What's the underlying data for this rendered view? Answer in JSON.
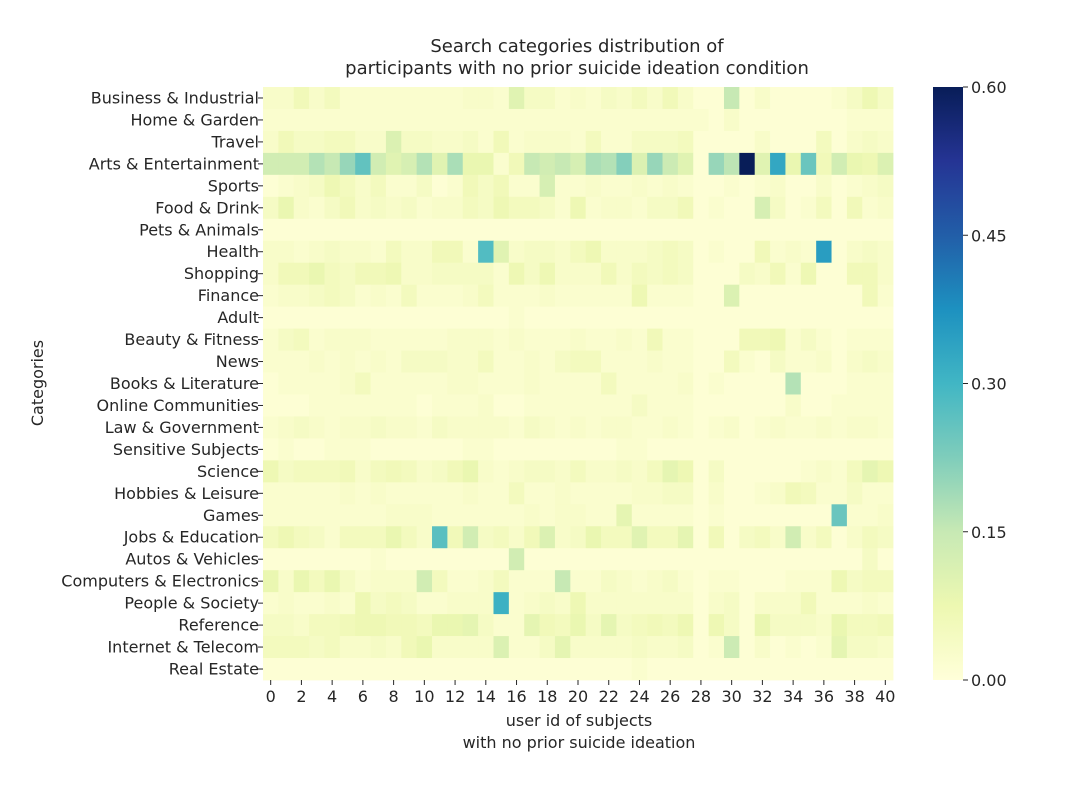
{
  "chart_data": {
    "type": "heatmap",
    "title_lines": [
      "Search categories distribution of",
      "participants with no prior suicide ideation condition"
    ],
    "xlabel_lines": [
      "user id of subjects",
      "with no prior suicide ideation"
    ],
    "ylabel": "Categories",
    "colormap": "YlGnBu",
    "colorbar": {
      "vmin": 0.0,
      "vmax": 0.6,
      "ticks": [
        "0.00",
        "0.15",
        "0.30",
        "0.45",
        "0.60"
      ]
    },
    "x_ticks": [
      "0",
      "2",
      "4",
      "6",
      "8",
      "10",
      "12",
      "14",
      "16",
      "18",
      "20",
      "22",
      "24",
      "26",
      "28",
      "30",
      "32",
      "34",
      "36",
      "38",
      "40"
    ],
    "x": [
      0,
      1,
      2,
      3,
      4,
      5,
      6,
      7,
      8,
      9,
      10,
      11,
      12,
      13,
      14,
      15,
      16,
      17,
      18,
      19,
      20,
      21,
      22,
      23,
      24,
      25,
      26,
      27,
      28,
      29,
      30,
      31,
      32,
      33,
      34,
      35,
      36,
      37,
      38,
      39,
      40
    ],
    "categories": [
      "Business & Industrial",
      "Home & Garden",
      "Travel",
      "Arts & Entertainment",
      "Sports",
      "Food & Drink",
      "Pets & Animals",
      "Health",
      "Shopping",
      "Finance",
      "Adult",
      "Beauty & Fitness",
      "News",
      "Books & Literature",
      "Online Communities",
      "Law & Government",
      "Sensitive Subjects",
      "Science",
      "Hobbies & Leisure",
      "Games",
      "Jobs & Education",
      "Autos & Vehicles",
      "Computers & Electronics",
      "People & Society",
      "Reference",
      "Internet & Telecom",
      "Real Estate"
    ],
    "values": [
      [
        0.03,
        0.03,
        0.06,
        0.03,
        0.05,
        0.02,
        0.02,
        0.02,
        0.02,
        0.02,
        0.02,
        0.02,
        0.02,
        0.03,
        0.03,
        0.02,
        0.1,
        0.04,
        0.04,
        0.02,
        0.03,
        0.02,
        0.04,
        0.03,
        0.05,
        0.03,
        0.06,
        0.03,
        0.01,
        0.01,
        0.15,
        0.01,
        0.03,
        0.01,
        0.01,
        0.01,
        0.01,
        0.02,
        0.04,
        0.07,
        0.04
      ],
      [
        0.02,
        0.02,
        0.02,
        0.02,
        0.02,
        0.02,
        0.02,
        0.02,
        0.02,
        0.02,
        0.02,
        0.02,
        0.02,
        0.02,
        0.02,
        0.02,
        0.02,
        0.02,
        0.02,
        0.02,
        0.02,
        0.02,
        0.02,
        0.02,
        0.02,
        0.02,
        0.02,
        0.02,
        0.02,
        0.01,
        0.03,
        0.01,
        0.01,
        0.01,
        0.01,
        0.01,
        0.01,
        0.01,
        0.02,
        0.02,
        0.02
      ],
      [
        0.03,
        0.06,
        0.04,
        0.04,
        0.05,
        0.05,
        0.03,
        0.03,
        0.11,
        0.04,
        0.04,
        0.03,
        0.03,
        0.04,
        0.02,
        0.06,
        0.02,
        0.03,
        0.03,
        0.03,
        0.02,
        0.05,
        0.02,
        0.02,
        0.04,
        0.04,
        0.04,
        0.05,
        0.01,
        0.01,
        0.01,
        0.01,
        0.03,
        0.01,
        0.01,
        0.01,
        0.05,
        0.01,
        0.03,
        0.04,
        0.03
      ],
      [
        0.13,
        0.13,
        0.13,
        0.17,
        0.15,
        0.2,
        0.26,
        0.13,
        0.1,
        0.12,
        0.17,
        0.1,
        0.18,
        0.08,
        0.08,
        0.02,
        0.06,
        0.15,
        0.13,
        0.15,
        0.12,
        0.18,
        0.17,
        0.22,
        0.11,
        0.2,
        0.14,
        0.1,
        0.01,
        0.2,
        0.16,
        0.6,
        0.1,
        0.33,
        0.08,
        0.25,
        0.06,
        0.13,
        0.08,
        0.07,
        0.11
      ],
      [
        0.01,
        0.02,
        0.03,
        0.04,
        0.07,
        0.05,
        0.03,
        0.05,
        0.02,
        0.02,
        0.04,
        0.01,
        0.02,
        0.06,
        0.04,
        0.06,
        0.02,
        0.02,
        0.12,
        0.02,
        0.02,
        0.03,
        0.02,
        0.02,
        0.03,
        0.02,
        0.03,
        0.02,
        0.01,
        0.01,
        0.02,
        0.01,
        0.02,
        0.03,
        0.01,
        0.01,
        0.03,
        0.01,
        0.02,
        0.03,
        0.04
      ],
      [
        0.04,
        0.08,
        0.03,
        0.02,
        0.04,
        0.06,
        0.03,
        0.04,
        0.03,
        0.04,
        0.02,
        0.03,
        0.03,
        0.05,
        0.04,
        0.07,
        0.05,
        0.05,
        0.04,
        0.02,
        0.07,
        0.02,
        0.03,
        0.03,
        0.02,
        0.04,
        0.04,
        0.06,
        0.01,
        0.02,
        0.01,
        0.01,
        0.12,
        0.04,
        0.01,
        0.02,
        0.05,
        0.01,
        0.06,
        0.02,
        0.03
      ],
      [
        0.01,
        0.01,
        0.01,
        0.01,
        0.01,
        0.01,
        0.01,
        0.01,
        0.01,
        0.01,
        0.01,
        0.01,
        0.01,
        0.01,
        0.01,
        0.01,
        0.01,
        0.01,
        0.01,
        0.01,
        0.01,
        0.01,
        0.01,
        0.01,
        0.01,
        0.01,
        0.01,
        0.01,
        0.01,
        0.01,
        0.01,
        0.01,
        0.01,
        0.01,
        0.01,
        0.01,
        0.01,
        0.01,
        0.01,
        0.01,
        0.01
      ],
      [
        0.03,
        0.03,
        0.02,
        0.03,
        0.04,
        0.03,
        0.03,
        0.02,
        0.05,
        0.03,
        0.03,
        0.06,
        0.06,
        0.02,
        0.28,
        0.1,
        0.03,
        0.04,
        0.04,
        0.03,
        0.05,
        0.07,
        0.03,
        0.03,
        0.03,
        0.04,
        0.05,
        0.04,
        0.01,
        0.02,
        0.01,
        0.01,
        0.06,
        0.02,
        0.03,
        0.02,
        0.35,
        0.01,
        0.03,
        0.04,
        0.03
      ],
      [
        0.03,
        0.06,
        0.06,
        0.08,
        0.05,
        0.04,
        0.06,
        0.06,
        0.07,
        0.03,
        0.03,
        0.04,
        0.04,
        0.04,
        0.04,
        0.02,
        0.07,
        0.04,
        0.07,
        0.03,
        0.03,
        0.03,
        0.06,
        0.03,
        0.05,
        0.04,
        0.05,
        0.04,
        0.01,
        0.01,
        0.01,
        0.04,
        0.03,
        0.06,
        0.02,
        0.07,
        0.01,
        0.01,
        0.06,
        0.06,
        0.03
      ],
      [
        0.02,
        0.03,
        0.03,
        0.04,
        0.05,
        0.04,
        0.02,
        0.03,
        0.02,
        0.05,
        0.02,
        0.02,
        0.02,
        0.03,
        0.05,
        0.02,
        0.02,
        0.02,
        0.03,
        0.02,
        0.02,
        0.02,
        0.02,
        0.02,
        0.07,
        0.02,
        0.02,
        0.02,
        0.01,
        0.01,
        0.11,
        0.01,
        0.01,
        0.01,
        0.01,
        0.01,
        0.01,
        0.01,
        0.01,
        0.06,
        0.02
      ],
      [
        0.01,
        0.01,
        0.01,
        0.01,
        0.01,
        0.01,
        0.01,
        0.01,
        0.01,
        0.01,
        0.01,
        0.01,
        0.01,
        0.01,
        0.01,
        0.01,
        0.02,
        0.01,
        0.01,
        0.01,
        0.01,
        0.01,
        0.01,
        0.01,
        0.01,
        0.01,
        0.01,
        0.01,
        0.01,
        0.01,
        0.01,
        0.01,
        0.01,
        0.01,
        0.01,
        0.01,
        0.01,
        0.01,
        0.01,
        0.01,
        0.01
      ],
      [
        0.02,
        0.04,
        0.05,
        0.02,
        0.03,
        0.03,
        0.03,
        0.02,
        0.02,
        0.02,
        0.02,
        0.02,
        0.03,
        0.03,
        0.03,
        0.02,
        0.03,
        0.02,
        0.02,
        0.02,
        0.03,
        0.02,
        0.02,
        0.03,
        0.02,
        0.06,
        0.02,
        0.02,
        0.01,
        0.01,
        0.01,
        0.06,
        0.06,
        0.07,
        0.02,
        0.04,
        0.02,
        0.01,
        0.02,
        0.02,
        0.02
      ],
      [
        0.02,
        0.02,
        0.02,
        0.03,
        0.02,
        0.03,
        0.02,
        0.03,
        0.02,
        0.04,
        0.04,
        0.04,
        0.03,
        0.03,
        0.05,
        0.02,
        0.02,
        0.03,
        0.02,
        0.04,
        0.05,
        0.05,
        0.02,
        0.02,
        0.02,
        0.03,
        0.02,
        0.02,
        0.01,
        0.01,
        0.05,
        0.02,
        0.01,
        0.04,
        0.02,
        0.02,
        0.03,
        0.01,
        0.03,
        0.04,
        0.03
      ],
      [
        0.01,
        0.02,
        0.02,
        0.02,
        0.02,
        0.03,
        0.05,
        0.02,
        0.02,
        0.02,
        0.02,
        0.02,
        0.03,
        0.03,
        0.02,
        0.02,
        0.02,
        0.03,
        0.02,
        0.02,
        0.02,
        0.02,
        0.05,
        0.02,
        0.02,
        0.02,
        0.02,
        0.03,
        0.01,
        0.02,
        0.01,
        0.01,
        0.01,
        0.01,
        0.17,
        0.01,
        0.01,
        0.01,
        0.02,
        0.02,
        0.02
      ],
      [
        0.01,
        0.01,
        0.01,
        0.02,
        0.02,
        0.02,
        0.02,
        0.02,
        0.02,
        0.02,
        0.01,
        0.02,
        0.02,
        0.02,
        0.03,
        0.01,
        0.01,
        0.02,
        0.02,
        0.02,
        0.02,
        0.02,
        0.02,
        0.02,
        0.04,
        0.02,
        0.02,
        0.02,
        0.01,
        0.01,
        0.01,
        0.01,
        0.01,
        0.01,
        0.03,
        0.01,
        0.01,
        0.02,
        0.02,
        0.02,
        0.02
      ],
      [
        0.02,
        0.03,
        0.04,
        0.03,
        0.02,
        0.03,
        0.03,
        0.04,
        0.03,
        0.03,
        0.02,
        0.04,
        0.03,
        0.03,
        0.03,
        0.03,
        0.02,
        0.04,
        0.03,
        0.02,
        0.03,
        0.02,
        0.03,
        0.03,
        0.02,
        0.02,
        0.03,
        0.02,
        0.01,
        0.02,
        0.03,
        0.01,
        0.02,
        0.03,
        0.02,
        0.02,
        0.03,
        0.02,
        0.03,
        0.03,
        0.02
      ],
      [
        0.01,
        0.02,
        0.01,
        0.01,
        0.02,
        0.02,
        0.02,
        0.01,
        0.01,
        0.01,
        0.01,
        0.01,
        0.01,
        0.02,
        0.02,
        0.01,
        0.01,
        0.01,
        0.01,
        0.01,
        0.01,
        0.01,
        0.01,
        0.02,
        0.02,
        0.01,
        0.01,
        0.01,
        0.01,
        0.01,
        0.01,
        0.01,
        0.01,
        0.01,
        0.01,
        0.01,
        0.01,
        0.01,
        0.01,
        0.01,
        0.01
      ],
      [
        0.07,
        0.04,
        0.05,
        0.05,
        0.05,
        0.06,
        0.03,
        0.05,
        0.06,
        0.05,
        0.03,
        0.04,
        0.06,
        0.08,
        0.03,
        0.02,
        0.03,
        0.04,
        0.04,
        0.03,
        0.05,
        0.03,
        0.03,
        0.04,
        0.03,
        0.05,
        0.09,
        0.07,
        0.01,
        0.04,
        0.01,
        0.01,
        0.01,
        0.01,
        0.01,
        0.02,
        0.03,
        0.02,
        0.05,
        0.09,
        0.07
      ],
      [
        0.02,
        0.02,
        0.02,
        0.02,
        0.02,
        0.03,
        0.02,
        0.03,
        0.02,
        0.02,
        0.02,
        0.02,
        0.02,
        0.03,
        0.02,
        0.02,
        0.05,
        0.02,
        0.02,
        0.03,
        0.02,
        0.02,
        0.02,
        0.02,
        0.03,
        0.03,
        0.04,
        0.04,
        0.01,
        0.03,
        0.01,
        0.01,
        0.02,
        0.03,
        0.06,
        0.05,
        0.02,
        0.02,
        0.04,
        0.02,
        0.02
      ],
      [
        0.02,
        0.02,
        0.02,
        0.02,
        0.02,
        0.02,
        0.02,
        0.02,
        0.03,
        0.03,
        0.03,
        0.02,
        0.02,
        0.02,
        0.02,
        0.02,
        0.02,
        0.03,
        0.02,
        0.03,
        0.03,
        0.02,
        0.02,
        0.09,
        0.02,
        0.02,
        0.02,
        0.02,
        0.01,
        0.02,
        0.01,
        0.01,
        0.01,
        0.01,
        0.01,
        0.01,
        0.01,
        0.25,
        0.02,
        0.02,
        0.03
      ],
      [
        0.05,
        0.07,
        0.05,
        0.04,
        0.02,
        0.05,
        0.05,
        0.05,
        0.08,
        0.05,
        0.03,
        0.27,
        0.06,
        0.13,
        0.04,
        0.05,
        0.03,
        0.06,
        0.11,
        0.03,
        0.04,
        0.08,
        0.05,
        0.05,
        0.1,
        0.05,
        0.05,
        0.09,
        0.01,
        0.06,
        0.01,
        0.04,
        0.05,
        0.03,
        0.13,
        0.03,
        0.05,
        0.01,
        0.03,
        0.05,
        0.04
      ],
      [
        0.01,
        0.01,
        0.01,
        0.01,
        0.01,
        0.01,
        0.01,
        0.02,
        0.01,
        0.01,
        0.01,
        0.01,
        0.01,
        0.01,
        0.01,
        0.01,
        0.13,
        0.01,
        0.01,
        0.01,
        0.01,
        0.01,
        0.01,
        0.01,
        0.01,
        0.01,
        0.01,
        0.01,
        0.01,
        0.01,
        0.01,
        0.01,
        0.01,
        0.01,
        0.01,
        0.01,
        0.01,
        0.01,
        0.01,
        0.04,
        0.01
      ],
      [
        0.08,
        0.03,
        0.08,
        0.05,
        0.08,
        0.04,
        0.02,
        0.03,
        0.03,
        0.03,
        0.13,
        0.05,
        0.02,
        0.02,
        0.03,
        0.05,
        0.02,
        0.02,
        0.02,
        0.15,
        0.02,
        0.02,
        0.04,
        0.03,
        0.02,
        0.03,
        0.04,
        0.02,
        0.01,
        0.02,
        0.02,
        0.01,
        0.01,
        0.01,
        0.02,
        0.02,
        0.02,
        0.07,
        0.04,
        0.05,
        0.05
      ],
      [
        0.02,
        0.03,
        0.02,
        0.02,
        0.03,
        0.02,
        0.07,
        0.04,
        0.05,
        0.04,
        0.02,
        0.02,
        0.03,
        0.03,
        0.03,
        0.31,
        0.02,
        0.03,
        0.04,
        0.03,
        0.07,
        0.03,
        0.03,
        0.03,
        0.03,
        0.03,
        0.03,
        0.03,
        0.01,
        0.03,
        0.04,
        0.01,
        0.03,
        0.03,
        0.03,
        0.06,
        0.02,
        0.02,
        0.02,
        0.03,
        0.02
      ],
      [
        0.04,
        0.04,
        0.03,
        0.05,
        0.05,
        0.06,
        0.07,
        0.07,
        0.06,
        0.06,
        0.05,
        0.08,
        0.08,
        0.09,
        0.04,
        0.02,
        0.02,
        0.09,
        0.06,
        0.05,
        0.08,
        0.04,
        0.09,
        0.04,
        0.05,
        0.06,
        0.05,
        0.07,
        0.01,
        0.07,
        0.04,
        0.01,
        0.08,
        0.04,
        0.04,
        0.04,
        0.03,
        0.08,
        0.05,
        0.05,
        0.06
      ],
      [
        0.05,
        0.05,
        0.05,
        0.04,
        0.05,
        0.03,
        0.03,
        0.04,
        0.03,
        0.06,
        0.08,
        0.03,
        0.03,
        0.03,
        0.03,
        0.11,
        0.02,
        0.02,
        0.04,
        0.09,
        0.03,
        0.03,
        0.03,
        0.03,
        0.04,
        0.03,
        0.03,
        0.04,
        0.01,
        0.02,
        0.14,
        0.01,
        0.03,
        0.01,
        0.02,
        0.01,
        0.02,
        0.09,
        0.04,
        0.04,
        0.03
      ],
      [
        0.01,
        0.01,
        0.01,
        0.01,
        0.01,
        0.01,
        0.01,
        0.01,
        0.01,
        0.01,
        0.01,
        0.01,
        0.01,
        0.01,
        0.01,
        0.01,
        0.01,
        0.01,
        0.01,
        0.01,
        0.01,
        0.01,
        0.01,
        0.01,
        0.02,
        0.01,
        0.01,
        0.01,
        0.01,
        0.01,
        0.01,
        0.01,
        0.01,
        0.01,
        0.01,
        0.01,
        0.01,
        0.01,
        0.01,
        0.01,
        0.01
      ]
    ]
  }
}
